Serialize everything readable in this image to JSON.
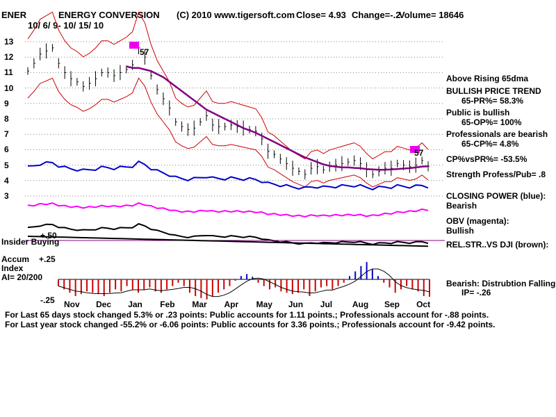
{
  "header": {
    "ticker": "ENER",
    "company": "ENERGY CONVERSION",
    "copyright": "(C) 2010 www.tigersoft.com",
    "close": "Close=  4.93",
    "change": "Change=-.2",
    "volume": "Volume= 18646",
    "date_range": "10/ 6/ 9- 10/ 15/ 10"
  },
  "panels": {
    "insider_label": "Insider Buying",
    "insider_tick": "+.50",
    "accum_title": "Accum",
    "accum_title2": "Index",
    "ai": "AI= 20/200",
    "accum_top_tick": "+.25",
    "accum_bottom_tick": "-.25",
    "arrow_label": "57",
    "arrow_label2": "57"
  },
  "right_panel": {
    "above_ma": "Above Rising 65dma",
    "trend": "BULLISH PRICE TREND",
    "pr": "65-PR%= 58.3%",
    "public": "Public is bullish",
    "op": "65-OP%= 100%",
    "professionals": "Professionals are bearish",
    "cp": "65-CP%= 4.8%",
    "cpvspr": "CP%vsPR%= -53.5%",
    "strength": "Strength Profess/Pub= .8",
    "closing_power": "CLOSING POWER (blue):",
    "cp_state": "Bearish",
    "obv": "OBV (magenta):",
    "obv_state": "Bullish",
    "relstr": "REL.STR..VS DJI (brown):",
    "bearish_note": "Bearish:  Distrubtion Falling.",
    "ip": "IP= -.26"
  },
  "footer": {
    "line1": "For Last 65 days stock changed  5.3% or  .23 points:  Public accounts for  1.11 points.;  Professionals account for -.88 points.",
    "line2": "For Last year stock changed -55.2% or -6.06 points:  Public accounts for  3.36 points.;  Professionals account for -9.42 points."
  },
  "colors": {
    "price": "#000000",
    "band": "#cc0000",
    "ma65": "#800080",
    "closing_power": "#0000cc",
    "obv": "#ff00ff",
    "rel_str": "#000000",
    "accum_neg": "#cc0000",
    "accum_pos": "#0000cc",
    "grid": "#808080"
  },
  "chart_data": {
    "type": "line",
    "title": "ENERGY CONVERSION",
    "y_ticks": [
      3,
      4,
      5,
      6,
      7,
      8,
      9,
      10,
      11,
      12,
      13
    ],
    "ylim": [
      3,
      13
    ],
    "month_labels": [
      "Nov",
      "Dec",
      "Jan",
      "Feb",
      "Mar",
      "Apr",
      "May",
      "Jun",
      "Jul",
      "Aug",
      "Sep",
      "Oct"
    ],
    "series": [
      {
        "name": "Price",
        "values": [
          11.1,
          11.6,
          12.2,
          12.4,
          12.6,
          11.6,
          11.0,
          10.6,
          10.4,
          10.1,
          10.3,
          10.6,
          11.0,
          11.0,
          10.8,
          11.0,
          11.2,
          11.5,
          12.6,
          12.0,
          10.8,
          9.9,
          9.3,
          8.7,
          7.8,
          7.5,
          7.3,
          7.4,
          7.8,
          8.2,
          7.6,
          7.5,
          7.5,
          7.6,
          7.5,
          7.4,
          7.3,
          7.2,
          6.7,
          5.9,
          5.7,
          5.4,
          5.1,
          4.8,
          4.6,
          4.4,
          4.8,
          4.9,
          4.7,
          4.9,
          5.0,
          5.1,
          5.2,
          5.3,
          5.1,
          4.7,
          4.4,
          4.6,
          4.8,
          4.8,
          5.1,
          5.0,
          4.9,
          5.0,
          5.3,
          4.93
        ]
      },
      {
        "name": "65-dma",
        "values": [
          null,
          null,
          null,
          null,
          null,
          null,
          null,
          null,
          null,
          null,
          null,
          null,
          null,
          null,
          null,
          null,
          11.4,
          11.3,
          11.3,
          11.2,
          11.1,
          10.9,
          10.7,
          10.4,
          10.1,
          9.8,
          9.5,
          9.2,
          8.9,
          8.6,
          8.4,
          8.2,
          8.0,
          7.8,
          7.6,
          7.4,
          7.25,
          7.1,
          6.9,
          6.7,
          6.5,
          6.3,
          6.1,
          5.9,
          5.7,
          5.5,
          5.35,
          5.2,
          5.05,
          4.95,
          4.9,
          4.85,
          4.85,
          4.82,
          4.8,
          4.75,
          4.72,
          4.7,
          4.7,
          4.72,
          4.75,
          4.78,
          4.8,
          4.85,
          4.9,
          4.93
        ]
      }
    ],
    "accumulation_index": {
      "ai": "20/200",
      "ip": -0.26,
      "values": [
        -0.1,
        -0.15,
        -0.2,
        -0.25,
        -0.22,
        -0.18,
        -0.2,
        -0.22,
        -0.25,
        -0.2,
        -0.15,
        -0.18,
        -0.1,
        -0.15,
        -0.2,
        -0.15,
        -0.12,
        -0.18,
        -0.2,
        -0.15,
        -0.1,
        -0.05,
        -0.1,
        -0.2,
        -0.25,
        -0.28,
        -0.3,
        -0.25,
        -0.2,
        -0.15,
        -0.1,
        -0.02,
        0.05,
        0.08,
        0.04,
        -0.05,
        -0.1,
        -0.15,
        -0.12,
        -0.18,
        -0.2,
        -0.22,
        -0.2,
        -0.15,
        -0.25,
        -0.18,
        -0.12,
        -0.1,
        -0.15,
        -0.1,
        -0.05,
        0.05,
        0.12,
        0.2,
        0.26,
        0.15,
        0.05,
        -0.05,
        -0.12,
        -0.2,
        -0.15,
        -0.1,
        -0.15,
        -0.18,
        -0.25,
        -0.26
      ]
    }
  }
}
